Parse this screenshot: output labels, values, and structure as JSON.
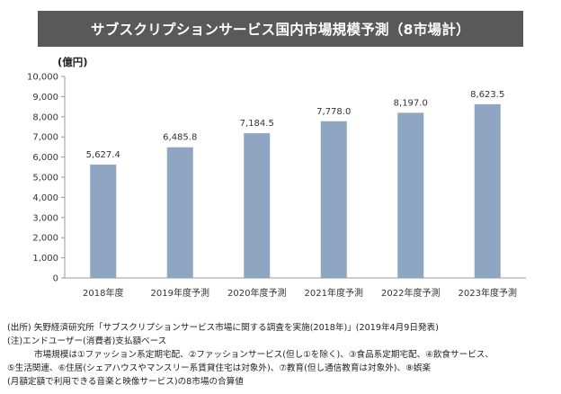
{
  "title": "サブスクリプションサービス国内市場規模予測（8市場計）",
  "unit_label": "(億円)",
  "chart_data": {
    "type": "bar",
    "categories": [
      "2018年度",
      "2019年度予測",
      "2020年度予測",
      "2021年度予測",
      "2022年度予測",
      "2023年度予測"
    ],
    "values": [
      5627.4,
      6485.8,
      7184.5,
      7778.0,
      8197.0,
      8623.5
    ],
    "value_labels": [
      "5,627.4",
      "6,485.8",
      "7,184.5",
      "7,778.0",
      "8,197.0",
      "8,623.5"
    ],
    "ylim": [
      0,
      10000
    ],
    "yticks": [
      0,
      1000,
      2000,
      3000,
      4000,
      5000,
      6000,
      7000,
      8000,
      9000,
      10000
    ],
    "ytick_labels": [
      "0",
      "1,000",
      "2,000",
      "3,000",
      "4,000",
      "5,000",
      "6,000",
      "7,000",
      "8,000",
      "9,000",
      "10,000"
    ],
    "bar_color": "#8ea6c1",
    "grid": false
  },
  "notes": {
    "source": "(出所) 矢野経済研究所「サブスクリプションサービス市場に関する調査を実施(2018年)」(2019年4月9日発表)",
    "note": "(注)エンドユーザー(消費者)支払額ベース",
    "detail1": "市場規模は①ファッション系定期宅配、②ファッションサービス(但し①を除く)、③食品系定期宅配、④飲食サービス、",
    "detail2": "⑤生活関連、⑥住居(シェアハウスやマンスリー系賃貸住宅は対象外)、⑦教育(但し通信教育は対象外)、⑧娯楽",
    "detail3": "(月額定額で利用できる音楽と映像サービス)の8市場の合算値"
  }
}
